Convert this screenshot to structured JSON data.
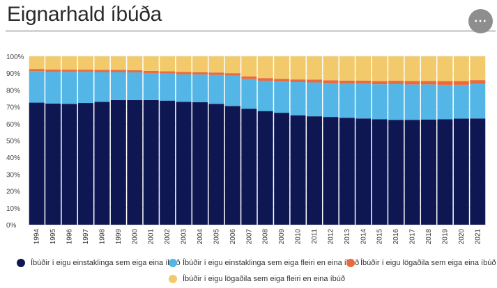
{
  "page": {
    "title": "Eignarhald íbúða",
    "menu_glyph": "···"
  },
  "chart_data": {
    "type": "bar",
    "stacked": true,
    "normalized": true,
    "categories": [
      "1994",
      "1995",
      "1996",
      "1997",
      "1998",
      "1999",
      "2000",
      "2001",
      "2002",
      "2003",
      "2004",
      "2005",
      "2006",
      "2007",
      "2008",
      "2009",
      "2010",
      "2011",
      "2012",
      "2013",
      "2014",
      "2015",
      "2016",
      "2017",
      "2018",
      "2019",
      "2020",
      "2021"
    ],
    "yticks": [
      "0%",
      "10%",
      "20%",
      "30%",
      "40%",
      "50%",
      "60%",
      "70%",
      "80%",
      "90%",
      "100%"
    ],
    "ylim": [
      0,
      100
    ],
    "grid": true,
    "legend_position": "bottom",
    "series": [
      {
        "name": "Íbúðir í eigu einstaklinga sem eiga eina íbúð",
        "color": "#0e1752",
        "values": [
          72.5,
          72,
          71.8,
          72.3,
          73,
          74,
          74,
          74,
          73.7,
          73,
          72.8,
          71.8,
          70.5,
          68.8,
          67.5,
          66.5,
          65,
          64.4,
          64,
          63.5,
          63.1,
          62.6,
          62.2,
          62.3,
          62.5,
          62.6,
          63,
          63.1
        ]
      },
      {
        "name": "Íbúðir í eigu einstaklinga sem eiga fleiri en eina íbúð",
        "color": "#53b6e6",
        "values": [
          18.7,
          18.9,
          19,
          18.5,
          17.7,
          16.7,
          16.5,
          16.1,
          16.1,
          16.3,
          16.4,
          17.2,
          18,
          17.7,
          18,
          18.5,
          19.7,
          20.1,
          20,
          20.3,
          20.7,
          20.8,
          21.3,
          21,
          20.8,
          20.5,
          20.1,
          20.5
        ]
      },
      {
        "name": "Íbúðir í eigu lögaðila sem eiga eina íbúð",
        "color": "#ea6a3c",
        "values": [
          1.3,
          1.3,
          1.3,
          1.3,
          1.3,
          1.3,
          1.3,
          1.3,
          1.3,
          1.4,
          1.4,
          1.4,
          1.5,
          1.6,
          1.6,
          1.6,
          1.6,
          1.7,
          1.8,
          1.8,
          1.8,
          1.9,
          2.0,
          2.1,
          2.1,
          2.2,
          2.2,
          2.3
        ]
      },
      {
        "name": "Íbúðir í eigu lögaðila sem eiga fleiri en eina íbúð",
        "color": "#f2ca6b",
        "values": [
          7.5,
          7.8,
          7.9,
          7.9,
          8,
          8,
          8.2,
          8.6,
          8.9,
          9.3,
          9.4,
          9.6,
          10,
          11.9,
          12.9,
          13.4,
          13.7,
          13.8,
          14.2,
          14.4,
          14.4,
          14.7,
          14.5,
          14.6,
          14.6,
          14.7,
          14.7,
          14.1
        ]
      }
    ]
  }
}
